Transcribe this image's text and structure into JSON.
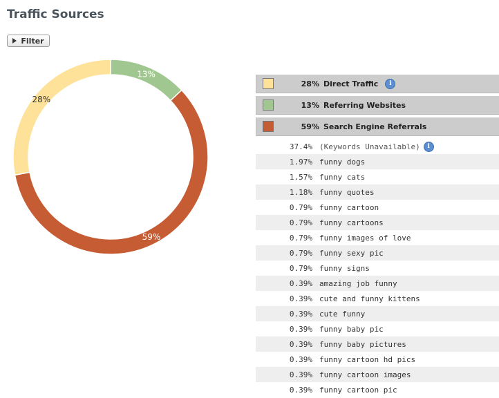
{
  "page": {
    "title": "Traffic Sources"
  },
  "toolbar": {
    "filter_label": "Filter"
  },
  "chart_data": {
    "type": "pie",
    "style": "donut",
    "slices": [
      {
        "label": "Referring Websites",
        "value": 13,
        "display": "13%",
        "color": "#a1c790",
        "label_color": "#ffffff"
      },
      {
        "label": "Search Engine Referrals",
        "value": 59,
        "display": "59%",
        "color": "#c55c34",
        "label_color": "#ffffff"
      },
      {
        "label": "Direct Traffic",
        "value": 28,
        "display": "28%",
        "color": "#fee299",
        "label_color": "#333333"
      }
    ]
  },
  "legend": {
    "items": [
      {
        "pct": "28%",
        "label": "Direct Traffic",
        "color": "#fee299",
        "has_info": true,
        "info_icon": "info-icon"
      },
      {
        "pct": "13%",
        "label": "Referring Websites",
        "color": "#a1c790",
        "has_info": false
      },
      {
        "pct": "59%",
        "label": "Search Engine Referrals",
        "color": "#c55c34",
        "has_info": false
      }
    ]
  },
  "keywords": {
    "rows": [
      {
        "pct": "37.4%",
        "label": "(Keywords Unavailable)",
        "has_info": true
      },
      {
        "pct": "1.97%",
        "label": "funny dogs"
      },
      {
        "pct": "1.57%",
        "label": "funny cats"
      },
      {
        "pct": "1.18%",
        "label": "funny quotes"
      },
      {
        "pct": "0.79%",
        "label": "funny cartoon"
      },
      {
        "pct": "0.79%",
        "label": "funny cartoons"
      },
      {
        "pct": "0.79%",
        "label": "funny images of love"
      },
      {
        "pct": "0.79%",
        "label": "funny sexy pic"
      },
      {
        "pct": "0.79%",
        "label": "funny signs"
      },
      {
        "pct": "0.39%",
        "label": "amazing job funny"
      },
      {
        "pct": "0.39%",
        "label": "cute and funny kittens"
      },
      {
        "pct": "0.39%",
        "label": "cute funny"
      },
      {
        "pct": "0.39%",
        "label": "funny baby pic"
      },
      {
        "pct": "0.39%",
        "label": "funny baby pictures"
      },
      {
        "pct": "0.39%",
        "label": "funny cartoon hd pics"
      },
      {
        "pct": "0.39%",
        "label": "funny cartoon images"
      },
      {
        "pct": "0.39%",
        "label": "funny cartoon pic"
      }
    ]
  }
}
